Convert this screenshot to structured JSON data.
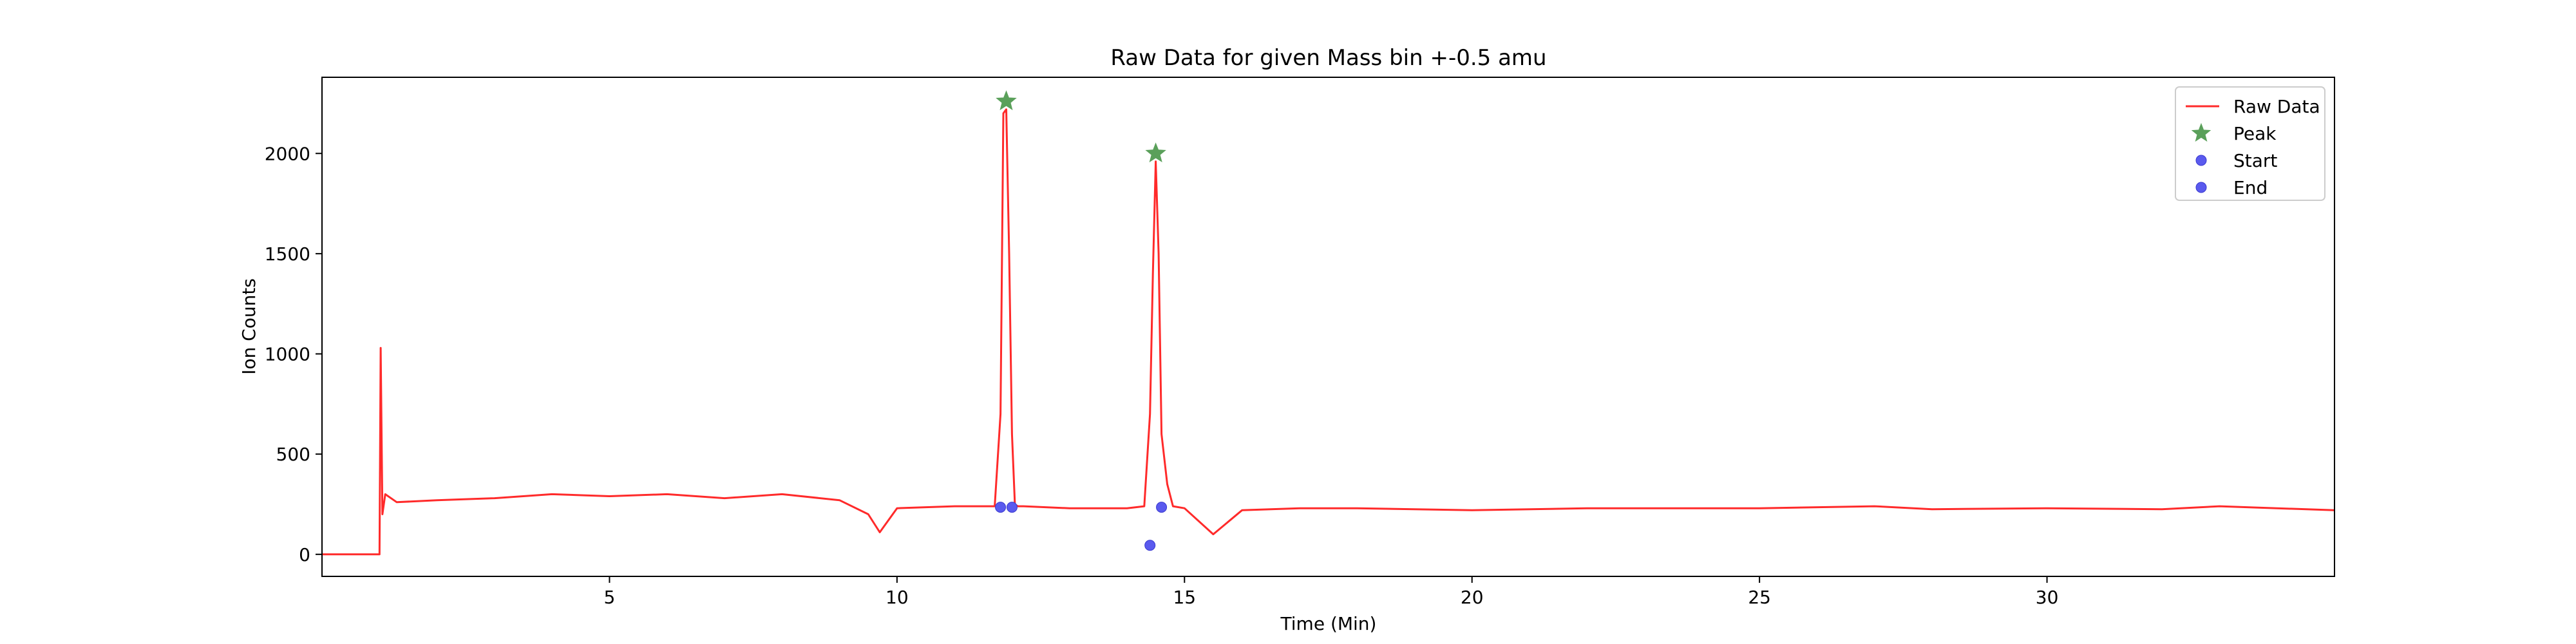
{
  "chart_data": {
    "type": "line",
    "title": "Raw Data for given Mass bin +-0.5 amu",
    "xlabel": "Time (Min)",
    "ylabel": "Ion Counts",
    "xlim": [
      0,
      35
    ],
    "ylim": [
      -110,
      2380
    ],
    "xticks": [
      5,
      10,
      15,
      20,
      25,
      30
    ],
    "yticks": [
      0,
      500,
      1000,
      1500,
      2000
    ],
    "grid": false,
    "legend_position": "top-right",
    "colors": {
      "raw": "#ff2a2a",
      "peak": "#5aa05a",
      "start": "#5a5aee",
      "end": "#5a5aee"
    },
    "series": [
      {
        "name": "Raw Data",
        "style": "line",
        "x": [
          0.0,
          1.0,
          1.02,
          1.05,
          1.1,
          1.3,
          2.0,
          3.0,
          4.0,
          5.0,
          6.0,
          7.0,
          8.0,
          9.0,
          9.5,
          9.7,
          10.0,
          11.0,
          11.7,
          11.8,
          11.85,
          11.9,
          11.95,
          12.0,
          12.05,
          12.1,
          12.2,
          13.0,
          14.0,
          14.3,
          14.4,
          14.45,
          14.5,
          14.55,
          14.6,
          14.7,
          14.8,
          15.0,
          15.5,
          16.0,
          17.0,
          18.0,
          20.0,
          22.0,
          24.0,
          25.0,
          27.0,
          28.0,
          30.0,
          32.0,
          33.0,
          34.0,
          35.0
        ],
        "y": [
          0,
          0,
          1030,
          200,
          300,
          260,
          270,
          280,
          300,
          290,
          300,
          280,
          300,
          270,
          200,
          110,
          230,
          240,
          240,
          700,
          2200,
          2220,
          1500,
          600,
          250,
          240,
          240,
          230,
          230,
          240,
          700,
          1400,
          1960,
          1500,
          600,
          350,
          240,
          230,
          100,
          220,
          230,
          230,
          220,
          230,
          230,
          230,
          240,
          225,
          230,
          225,
          240,
          230,
          220
        ]
      },
      {
        "name": "Peak",
        "style": "star",
        "x": [
          11.9,
          14.5
        ],
        "y": [
          2260,
          2000
        ]
      },
      {
        "name": "Start",
        "style": "dot",
        "x": [
          11.8,
          14.4
        ],
        "y": [
          235,
          45
        ]
      },
      {
        "name": "End",
        "style": "dot",
        "x": [
          12.0,
          14.6
        ],
        "y": [
          235,
          235
        ]
      }
    ]
  }
}
